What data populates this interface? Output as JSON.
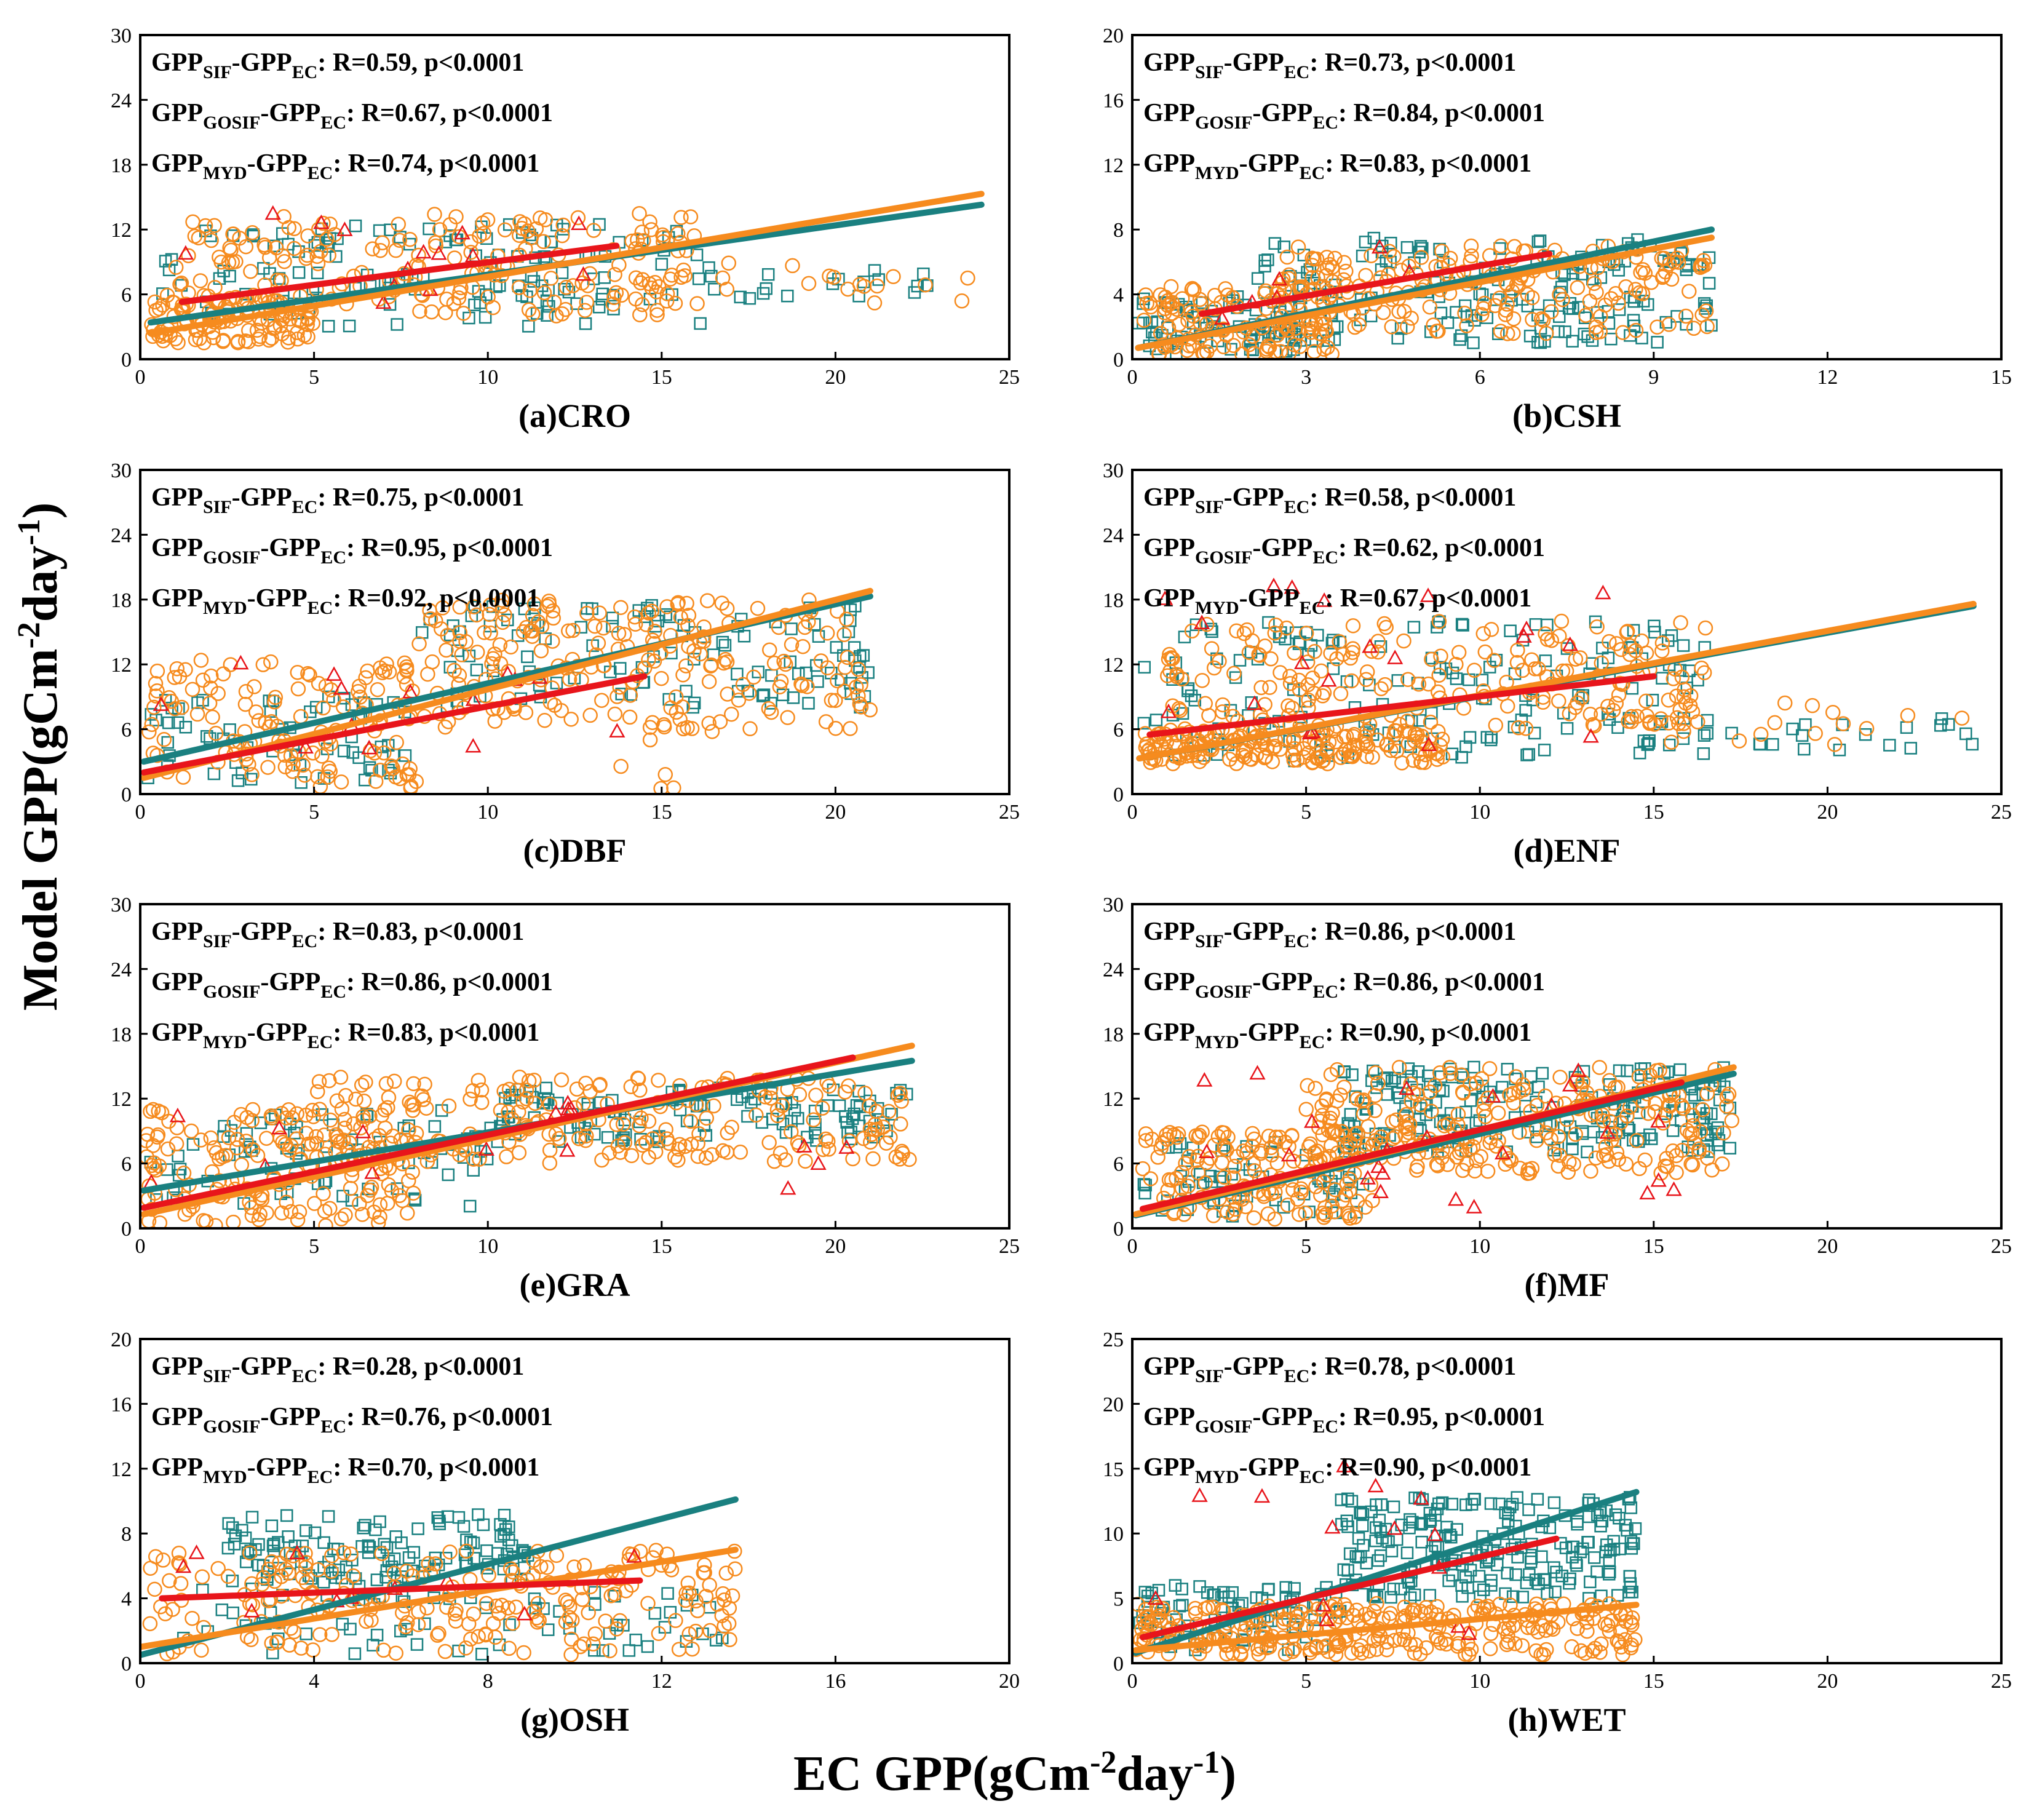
{
  "figure": {
    "ylabel_main": "Model GPP",
    "ylabel_unit_open": "(gCm",
    "ylabel_unit_exp1": "-2",
    "ylabel_unit_mid": "day",
    "ylabel_unit_exp2": "-1",
    "ylabel_unit_close": ")",
    "xlabel_main": "EC GPP",
    "xlabel_unit_open": "(gCm",
    "xlabel_unit_exp1": "-2",
    "xlabel_unit_mid": "day",
    "xlabel_unit_exp2": "-1",
    "xlabel_unit_close": ")"
  },
  "colors": {
    "sif": "#1a8080",
    "gosif": "#f68b1e",
    "myd": "#e8151b"
  },
  "annotation_parts": {
    "base": "GPP",
    "ref_sub": "EC",
    "dash": "-",
    "r_prefix": ": R=",
    "p_text": ", p<0.0001",
    "sif_sub": "SIF",
    "gosif_sub": "GOSIF",
    "myd_sub": "MYD"
  },
  "chart_data": [
    {
      "type": "scatter",
      "label": "(a)CRO",
      "xlim": [
        0,
        25
      ],
      "ylim": [
        0,
        30
      ],
      "xticks": [
        "0",
        "5",
        "10",
        "15",
        "20",
        "25"
      ],
      "yticks": [
        "0",
        "6",
        "12",
        "18",
        "24",
        "30"
      ],
      "r_values": [
        "0.59",
        "0.67",
        "0.74"
      ],
      "fits": {
        "sif": {
          "x": [
            0.3,
            24.2
          ],
          "y": [
            3.4,
            14.3
          ]
        },
        "gosif": {
          "x": [
            0.3,
            24.2
          ],
          "y": [
            2.4,
            15.3
          ]
        },
        "myd": {
          "x": [
            1.2,
            13.7
          ],
          "y": [
            5.3,
            10.5
          ]
        }
      },
      "clusters": {
        "sif": [
          {
            "x": [
              0.5,
              16.5
            ],
            "y": [
              3,
              12.5
            ],
            "n": 130
          },
          {
            "x": [
              16,
              24.2
            ],
            "y": [
              5.5,
              8.5
            ],
            "n": 18
          }
        ],
        "gosif": [
          {
            "x": [
              0.3,
              5
            ],
            "y": [
              1.5,
              6
            ],
            "n": 110
          },
          {
            "x": [
              1,
              16
            ],
            "y": [
              4,
              13.5
            ],
            "n": 210
          },
          {
            "x": [
              15,
              24.2
            ],
            "y": [
              5,
              9
            ],
            "n": 20
          }
        ],
        "myd": [
          {
            "x": [
              1.2,
              13.7
            ],
            "y": [
              4.5,
              14
            ],
            "n": 14
          }
        ]
      }
    },
    {
      "type": "scatter",
      "label": "(b)CSH",
      "xlim": [
        0,
        15
      ],
      "ylim": [
        0,
        20
      ],
      "xticks": [
        "0",
        "3",
        "6",
        "9",
        "12",
        "15"
      ],
      "yticks": [
        "0",
        "4",
        "8",
        "12",
        "16",
        "20"
      ],
      "r_values": [
        "0.73",
        "0.84",
        "0.83"
      ],
      "fits": {
        "sif": {
          "x": [
            0.1,
            10
          ],
          "y": [
            0.7,
            8
          ]
        },
        "gosif": {
          "x": [
            0.1,
            10
          ],
          "y": [
            0.7,
            7.5
          ]
        },
        "myd": {
          "x": [
            1.2,
            7.2
          ],
          "y": [
            2.8,
            6.5
          ]
        }
      },
      "clusters": {
        "sif": [
          {
            "x": [
              0.1,
              3
            ],
            "y": [
              0.3,
              4
            ],
            "n": 70
          },
          {
            "x": [
              2,
              10
            ],
            "y": [
              1,
              7.5
            ],
            "n": 170
          }
        ],
        "gosif": [
          {
            "x": [
              0.1,
              3.5
            ],
            "y": [
              0.3,
              4.5
            ],
            "n": 120
          },
          {
            "x": [
              2.5,
              10
            ],
            "y": [
              1.5,
              7
            ],
            "n": 200
          }
        ],
        "myd": [
          {
            "x": [
              1.2,
              7.2
            ],
            "y": [
              2.5,
              7
            ],
            "n": 6
          }
        ]
      }
    },
    {
      "type": "scatter",
      "label": "(c)DBF",
      "xlim": [
        0,
        25
      ],
      "ylim": [
        0,
        30
      ],
      "xticks": [
        "0",
        "5",
        "10",
        "15",
        "20",
        "25"
      ],
      "yticks": [
        "0",
        "6",
        "12",
        "18",
        "24",
        "30"
      ],
      "r_values": [
        "0.75",
        "0.95",
        "0.92"
      ],
      "fits": {
        "sif": {
          "x": [
            0.1,
            21
          ],
          "y": [
            3.0,
            18.3
          ]
        },
        "gosif": {
          "x": [
            0.1,
            21
          ],
          "y": [
            1.5,
            18.8
          ]
        },
        "myd": {
          "x": [
            0.1,
            14.5
          ],
          "y": [
            2.0,
            10.9
          ]
        }
      },
      "clusters": {
        "sif": [
          {
            "x": [
              0.2,
              8
            ],
            "y": [
              1,
              9
            ],
            "n": 60
          },
          {
            "x": [
              8,
              21
            ],
            "y": [
              8,
              17.5
            ],
            "n": 110
          }
        ],
        "gosif": [
          {
            "x": [
              0.2,
              8
            ],
            "y": [
              0.5,
              12.5
            ],
            "n": 140
          },
          {
            "x": [
              8,
              21
            ],
            "y": [
              6,
              18
            ],
            "n": 220
          },
          {
            "x": [
              13,
              18
            ],
            "y": [
              0.3,
              6
            ],
            "n": 6
          }
        ],
        "myd": [
          {
            "x": [
              0.1,
              14.5
            ],
            "y": [
              1.5,
              12.5
            ],
            "n": 14
          }
        ]
      }
    },
    {
      "type": "scatter",
      "label": "(d)ENF",
      "xlim": [
        0,
        25
      ],
      "ylim": [
        0,
        30
      ],
      "xticks": [
        "0",
        "5",
        "10",
        "15",
        "20",
        "25"
      ],
      "yticks": [
        "0",
        "6",
        "12",
        "18",
        "24",
        "30"
      ],
      "r_values": [
        "0.58",
        "0.62",
        "0.67"
      ],
      "fits": {
        "sif": {
          "x": [
            0.2,
            24.2
          ],
          "y": [
            3.3,
            17.4
          ]
        },
        "gosif": {
          "x": [
            0.2,
            24.2
          ],
          "y": [
            3.3,
            17.6
          ]
        },
        "myd": {
          "x": [
            0.5,
            15
          ],
          "y": [
            5.5,
            10.9
          ]
        }
      },
      "clusters": {
        "sif": [
          {
            "x": [
              0.3,
              16.5
            ],
            "y": [
              3,
              16
            ],
            "n": 160
          },
          {
            "x": [
              14,
              24.2
            ],
            "y": [
              4,
              7
            ],
            "n": 25
          }
        ],
        "gosif": [
          {
            "x": [
              0.3,
              9
            ],
            "y": [
              2.8,
              6
            ],
            "n": 180
          },
          {
            "x": [
              1,
              16.5
            ],
            "y": [
              6,
              16
            ],
            "n": 200
          },
          {
            "x": [
              14,
              24.2
            ],
            "y": [
              4.5,
              9
            ],
            "n": 22
          }
        ],
        "myd": [
          {
            "x": [
              0.5,
              15
            ],
            "y": [
              4,
              19.5
            ],
            "n": 20
          }
        ]
      }
    },
    {
      "type": "scatter",
      "label": "(e)GRA",
      "xlim": [
        0,
        25
      ],
      "ylim": [
        0,
        30
      ],
      "xticks": [
        "0",
        "5",
        "10",
        "15",
        "20",
        "25"
      ],
      "yticks": [
        "0",
        "6",
        "12",
        "18",
        "24",
        "30"
      ],
      "r_values": [
        "0.83",
        "0.86",
        "0.83"
      ],
      "fits": {
        "sif": {
          "x": [
            0.1,
            22.2
          ],
          "y": [
            3.5,
            15.5
          ]
        },
        "gosif": {
          "x": [
            0.1,
            22.2
          ],
          "y": [
            1.3,
            16.9
          ]
        },
        "myd": {
          "x": [
            0.1,
            20.5
          ],
          "y": [
            1.9,
            15.8
          ]
        }
      },
      "clusters": {
        "sif": [
          {
            "x": [
              0.2,
              10
            ],
            "y": [
              2,
              11
            ],
            "n": 70
          },
          {
            "x": [
              10,
              22.2
            ],
            "y": [
              8,
              13
            ],
            "n": 110
          }
        ],
        "gosif": [
          {
            "x": [
              0.1,
              8
            ],
            "y": [
              0.2,
              11
            ],
            "n": 170
          },
          {
            "x": [
              5,
              22.2
            ],
            "y": [
              6,
              14
            ],
            "n": 230
          }
        ],
        "myd": [
          {
            "x": [
              0.2,
              20.5
            ],
            "y": [
              0.5,
              15
            ],
            "n": 16
          }
        ]
      }
    },
    {
      "type": "scatter",
      "label": "(f)MF",
      "xlim": [
        0,
        25
      ],
      "ylim": [
        0,
        30
      ],
      "xticks": [
        "0",
        "5",
        "10",
        "15",
        "20",
        "25"
      ],
      "yticks": [
        "0",
        "6",
        "12",
        "18",
        "24",
        "30"
      ],
      "r_values": [
        "0.86",
        "0.86",
        "0.90"
      ],
      "fits": {
        "sif": {
          "x": [
            0.1,
            17.3
          ],
          "y": [
            1.2,
            14.3
          ]
        },
        "gosif": {
          "x": [
            0.1,
            17.3
          ],
          "y": [
            1.3,
            14.9
          ]
        },
        "myd": {
          "x": [
            0.3,
            15.8
          ],
          "y": [
            1.8,
            13.5
          ]
        }
      },
      "clusters": {
        "sif": [
          {
            "x": [
              0.3,
              7
            ],
            "y": [
              1,
              8
            ],
            "n": 60
          },
          {
            "x": [
              6,
              17.3
            ],
            "y": [
              7,
              15
            ],
            "n": 180
          }
        ],
        "gosif": [
          {
            "x": [
              0.2,
              7
            ],
            "y": [
              0.8,
              9
            ],
            "n": 150
          },
          {
            "x": [
              5,
              17.3
            ],
            "y": [
              5,
              15
            ],
            "n": 260
          }
        ],
        "myd": [
          {
            "x": [
              0.3,
              15.8
            ],
            "y": [
              1.5,
              15
            ],
            "n": 24
          }
        ]
      }
    },
    {
      "type": "scatter",
      "label": "(g)OSH",
      "xlim": [
        0,
        20
      ],
      "ylim": [
        0,
        20
      ],
      "xticks": [
        "0",
        "4",
        "8",
        "12",
        "16",
        "20"
      ],
      "yticks": [
        "0",
        "4",
        "8",
        "12",
        "16",
        "20"
      ],
      "r_values": [
        "0.28",
        "0.76",
        "0.70"
      ],
      "fits": {
        "sif": {
          "x": [
            0,
            13.7
          ],
          "y": [
            0.5,
            10.1
          ]
        },
        "gosif": {
          "x": [
            0,
            13.7
          ],
          "y": [
            1.0,
            7.0
          ]
        },
        "myd": {
          "x": [
            0.5,
            11.5
          ],
          "y": [
            4.0,
            5.1
          ]
        }
      },
      "clusters": {
        "sif": [
          {
            "x": [
              2,
              9
            ],
            "y": [
              5,
              9.2
            ],
            "n": 120
          },
          {
            "x": [
              0.2,
              13.7
            ],
            "y": [
              0.5,
              5
            ],
            "n": 70
          }
        ],
        "gosif": [
          {
            "x": [
              0.2,
              13.7
            ],
            "y": [
              0.5,
              7
            ],
            "n": 230
          }
        ],
        "myd": [
          {
            "x": [
              0.5,
              11.5
            ],
            "y": [
              3,
              8
            ],
            "n": 10
          }
        ]
      }
    },
    {
      "type": "scatter",
      "label": "(h)WET",
      "xlim": [
        0,
        25
      ],
      "ylim": [
        0,
        25
      ],
      "xticks": [
        "0",
        "5",
        "10",
        "15",
        "20",
        "25"
      ],
      "yticks": [
        "0",
        "5",
        "10",
        "15",
        "20",
        "25"
      ],
      "r_values": [
        "0.78",
        "0.95",
        "0.90"
      ],
      "fits": {
        "sif": {
          "x": [
            0.1,
            14.5
          ],
          "y": [
            0.8,
            13.2
          ]
        },
        "gosif": {
          "x": [
            0.1,
            14.5
          ],
          "y": [
            1.0,
            4.5
          ]
        },
        "myd": {
          "x": [
            0.3,
            12.2
          ],
          "y": [
            2.0,
            9.6
          ]
        }
      },
      "clusters": {
        "sif": [
          {
            "x": [
              0.2,
              6
            ],
            "y": [
              1,
              6
            ],
            "n": 80
          },
          {
            "x": [
              6,
              14.5
            ],
            "y": [
              5,
              12.8
            ],
            "n": 220
          }
        ],
        "gosif": [
          {
            "x": [
              0.1,
              14.5
            ],
            "y": [
              0.6,
              4.6
            ],
            "n": 300
          }
        ],
        "myd": [
          {
            "x": [
              0.3,
              12.2
            ],
            "y": [
              2,
              15.5
            ],
            "n": 14
          }
        ]
      }
    }
  ]
}
